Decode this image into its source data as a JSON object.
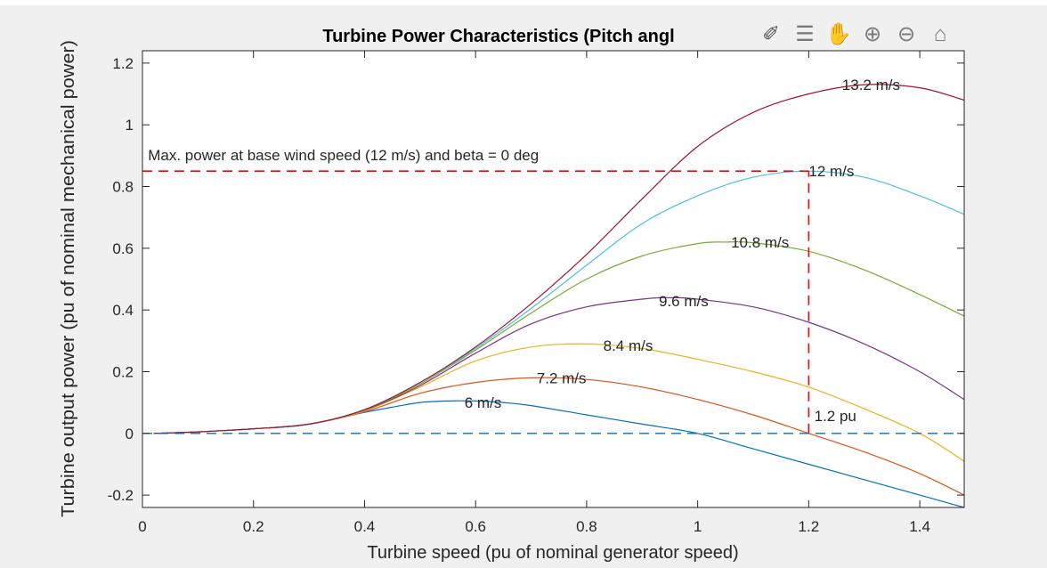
{
  "chart_data": {
    "type": "line",
    "title": "Turbine Power Characteristics (Pitch angl",
    "xlabel": "Turbine speed (pu of nominal generator speed)",
    "ylabel": "Turbine output power (pu of nominal mechanical power)",
    "xlim": [
      0,
      1.48
    ],
    "ylim": [
      -0.24,
      1.24
    ],
    "xticks": [
      0,
      0.2,
      0.4,
      0.6,
      0.8,
      1,
      1.2,
      1.4
    ],
    "xtick_labels": [
      "0",
      "0.2",
      "0.4",
      "0.6",
      "0.8",
      "1",
      "1.2",
      "1.4"
    ],
    "yticks": [
      -0.2,
      0,
      0.2,
      0.4,
      0.6,
      0.8,
      1,
      1.2
    ],
    "ytick_labels": [
      "-0.2",
      "0",
      "0.2",
      "0.4",
      "0.6",
      "0.8",
      "1",
      "1.2"
    ],
    "grid": false,
    "series": [
      {
        "name": "6 m/s",
        "color": "#0072BD",
        "x": [
          0.02,
          0.1,
          0.2,
          0.3,
          0.4,
          0.45,
          0.5,
          0.55,
          0.6,
          0.65,
          0.7,
          0.8,
          0.9,
          1.0,
          1.1,
          1.2,
          1.3,
          1.4,
          1.48
        ],
        "y": [
          0.0,
          0.005,
          0.015,
          0.03,
          0.068,
          0.085,
          0.1,
          0.105,
          0.105,
          0.1,
          0.09,
          0.06,
          0.03,
          0.0,
          -0.05,
          -0.1,
          -0.15,
          -0.2,
          -0.24
        ]
      },
      {
        "name": "7.2 m/s",
        "color": "#D95319",
        "x": [
          0.02,
          0.1,
          0.2,
          0.3,
          0.4,
          0.5,
          0.6,
          0.7,
          0.8,
          0.9,
          1.0,
          1.1,
          1.2,
          1.3,
          1.4,
          1.48
        ],
        "y": [
          0.0,
          0.005,
          0.015,
          0.03,
          0.07,
          0.13,
          0.165,
          0.18,
          0.175,
          0.15,
          0.11,
          0.06,
          0.0,
          -0.06,
          -0.13,
          -0.2
        ]
      },
      {
        "name": "8.4 m/s",
        "color": "#EDB120",
        "x": [
          0.02,
          0.1,
          0.2,
          0.3,
          0.4,
          0.5,
          0.6,
          0.7,
          0.8,
          0.9,
          1.0,
          1.1,
          1.2,
          1.3,
          1.4,
          1.48
        ],
        "y": [
          0.0,
          0.005,
          0.015,
          0.03,
          0.073,
          0.15,
          0.235,
          0.28,
          0.29,
          0.275,
          0.24,
          0.2,
          0.15,
          0.08,
          0.0,
          -0.09
        ]
      },
      {
        "name": "9.6 m/s",
        "color": "#7E2F8E",
        "x": [
          0.02,
          0.1,
          0.2,
          0.3,
          0.4,
          0.5,
          0.6,
          0.7,
          0.8,
          0.9,
          0.95,
          1.0,
          1.1,
          1.2,
          1.3,
          1.4,
          1.48
        ],
        "y": [
          0.0,
          0.005,
          0.015,
          0.03,
          0.075,
          0.155,
          0.26,
          0.355,
          0.41,
          0.435,
          0.44,
          0.435,
          0.41,
          0.36,
          0.29,
          0.2,
          0.11
        ]
      },
      {
        "name": "10.8 m/s",
        "color": "#77AC30",
        "x": [
          0.02,
          0.1,
          0.2,
          0.3,
          0.4,
          0.5,
          0.6,
          0.7,
          0.8,
          0.9,
          1.0,
          1.05,
          1.1,
          1.2,
          1.3,
          1.4,
          1.48
        ],
        "y": [
          0.0,
          0.005,
          0.015,
          0.03,
          0.076,
          0.16,
          0.27,
          0.39,
          0.5,
          0.575,
          0.615,
          0.62,
          0.618,
          0.59,
          0.53,
          0.45,
          0.38
        ]
      },
      {
        "name": "12 m/s",
        "color": "#4DBEEE",
        "x": [
          0.02,
          0.1,
          0.2,
          0.3,
          0.4,
          0.5,
          0.6,
          0.7,
          0.8,
          0.9,
          1.0,
          1.1,
          1.2,
          1.3,
          1.4,
          1.48
        ],
        "y": [
          0.0,
          0.005,
          0.015,
          0.03,
          0.077,
          0.165,
          0.275,
          0.405,
          0.545,
          0.68,
          0.77,
          0.83,
          0.85,
          0.83,
          0.77,
          0.71
        ]
      },
      {
        "name": "13.2 m/s",
        "color": "#A2142F",
        "x": [
          0.02,
          0.1,
          0.2,
          0.3,
          0.4,
          0.5,
          0.6,
          0.7,
          0.8,
          0.9,
          1.0,
          1.1,
          1.2,
          1.3,
          1.4,
          1.48
        ],
        "y": [
          0.0,
          0.005,
          0.015,
          0.03,
          0.077,
          0.165,
          0.28,
          0.42,
          0.58,
          0.76,
          0.93,
          1.04,
          1.1,
          1.13,
          1.12,
          1.08
        ]
      }
    ],
    "series_labels": [
      {
        "text": "13.2 m/s",
        "x": 1.26,
        "y": 1.13
      },
      {
        "text": "12 m/s",
        "x": 1.2,
        "y": 0.85
      },
      {
        "text": "10.8 m/s",
        "x": 1.06,
        "y": 0.62
      },
      {
        "text": "9.6 m/s",
        "x": 0.93,
        "y": 0.43
      },
      {
        "text": "8.4 m/s",
        "x": 0.83,
        "y": 0.285
      },
      {
        "text": "7.2 m/s",
        "x": 0.71,
        "y": 0.18
      },
      {
        "text": "6 m/s",
        "x": 0.58,
        "y": 0.1
      }
    ],
    "reference_lines": [
      {
        "kind": "horizontal",
        "y": 0.85,
        "x_from": 0,
        "x_to": 1.2,
        "color": "#FF0000",
        "style": "dashed"
      },
      {
        "kind": "vertical",
        "x": 1.2,
        "y_from": 0,
        "y_to": 0.85,
        "color": "#FF0000",
        "style": "dashed"
      },
      {
        "kind": "horizontal",
        "y": 0,
        "x_from": 0,
        "x_to": 1.48,
        "color": "#0072BD",
        "style": "dashed"
      }
    ],
    "annotations": [
      {
        "text": "Max. power at base wind speed (12 m/s) and beta = 0 deg",
        "x": 0.01,
        "y": 0.885
      },
      {
        "text": "1.2 pu",
        "x": 1.21,
        "y": 0.04
      }
    ]
  },
  "toolbar": {
    "items": [
      {
        "name": "brush-icon",
        "glyph": "✐"
      },
      {
        "name": "data-tips-icon",
        "glyph": "☰"
      },
      {
        "name": "pan-icon",
        "glyph": "✋"
      },
      {
        "name": "zoom-in-icon",
        "glyph": "⊕"
      },
      {
        "name": "zoom-out-icon",
        "glyph": "⊖"
      },
      {
        "name": "home-icon",
        "glyph": "⌂"
      }
    ]
  }
}
